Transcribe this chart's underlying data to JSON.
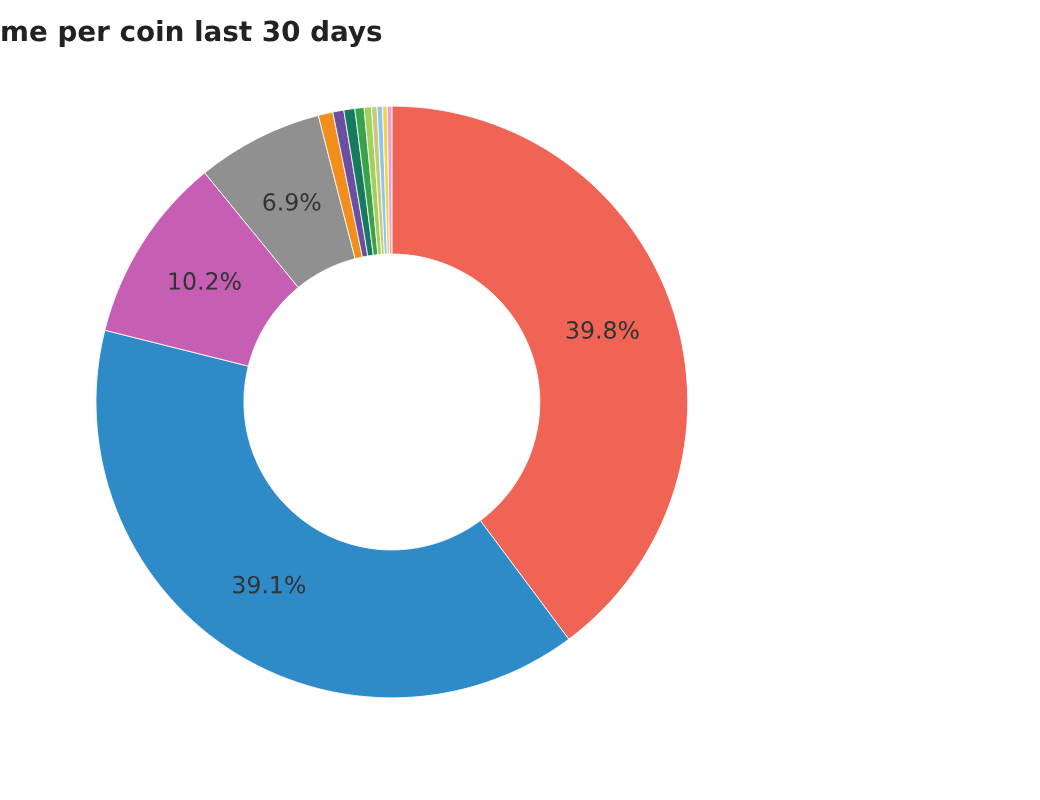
{
  "chart_data": {
    "type": "donut",
    "title": "me per coin last 30 days",
    "categories": [
      null,
      null,
      null,
      null,
      null,
      null,
      null,
      null,
      null,
      null,
      null,
      null,
      null
    ],
    "values": [
      39.8,
      39.1,
      10.2,
      6.9,
      0.8,
      0.6,
      0.6,
      0.5,
      0.4,
      0.3,
      0.3,
      0.25,
      0.25
    ],
    "value_labels": [
      "39.8%",
      "39.1%",
      "10.2%",
      "6.9%",
      null,
      null,
      null,
      null,
      null,
      null,
      null,
      null,
      null
    ],
    "colors": [
      "#ef6454",
      "#2e8bc7",
      "#c65fb3",
      "#909090",
      "#f28e1c",
      "#6b4fa0",
      "#177a5e",
      "#3aa24a",
      "#a2d05a",
      "#c6c87a",
      "#8ec6e8",
      "#f2d24a",
      "#f0a0c8"
    ]
  }
}
